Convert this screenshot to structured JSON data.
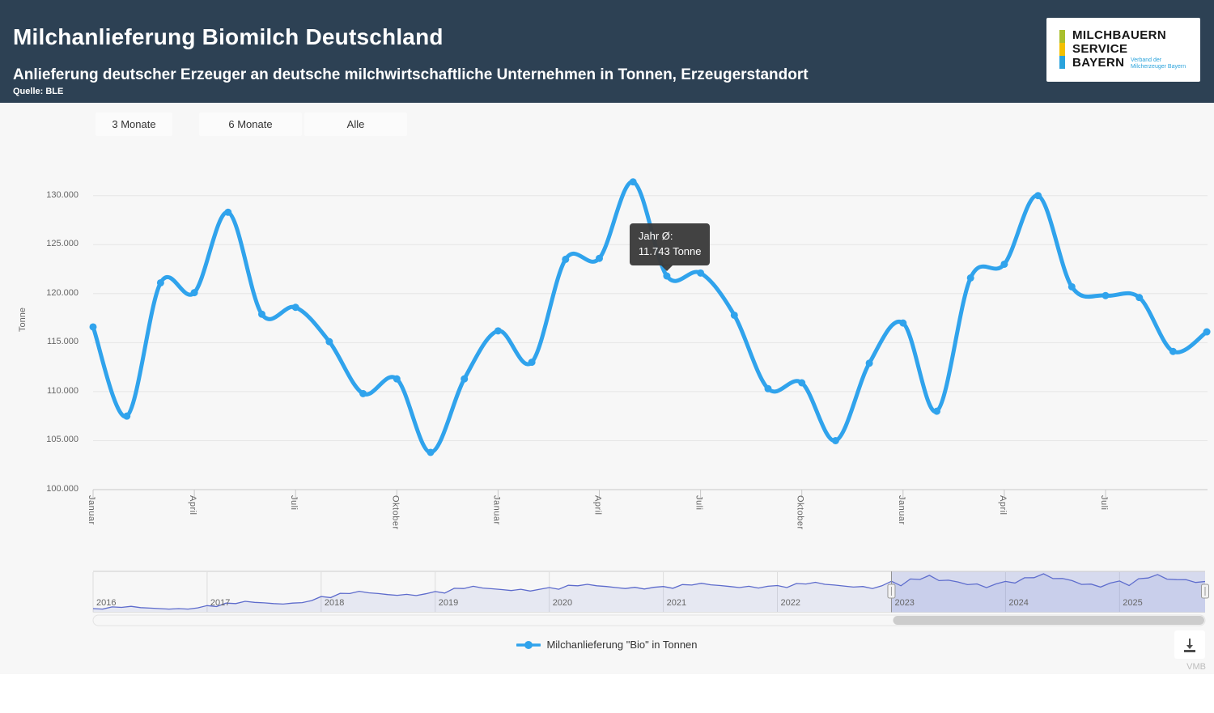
{
  "header": {
    "title": "Milchanlieferung Biomilch Deutschland",
    "subtitle": "Anlieferung deutscher Erzeuger an deutsche milchwirtschaftliche Unternehmen in Tonnen, Erzeugerstandort",
    "source": "Quelle: BLE",
    "logo": {
      "line1": "MILCHBAUERN",
      "line2": "SERVICE",
      "line3": "BAYERN",
      "tagline_line1": "Verband der",
      "tagline_line2": "Milcherzeuger Bayern"
    }
  },
  "range_selector": {
    "buttons": [
      "3 Monate",
      "6 Monate",
      "Alle"
    ]
  },
  "legend": {
    "label": "Milchanlieferung \"Bio\" in Tonnen"
  },
  "tooltip": {
    "line1": "Jahr Ø:",
    "line2": "11.743 Tonne"
  },
  "watermark": "VMB",
  "colors": {
    "header_bg": "#2d4154",
    "chart_bg": "#f7f7f7",
    "series": "#30a3ec",
    "grid": "#e6e6e6",
    "axis_line": "#c8c8c8",
    "axis_text": "#666666",
    "tooltip_bg": "#3c3c3c",
    "navigator_line": "#5d6bcc",
    "navigator_mask": "rgba(102,120,209,0.22)",
    "scrollbar_thumb": "#cccccc",
    "logo_bar": [
      "#a9bf2c",
      "#f3c000",
      "#2aa3dc"
    ]
  },
  "chart_data": {
    "type": "line",
    "series_name": "Milchanlieferung \"Bio\" in Tonnen",
    "title": "",
    "xlabel": "",
    "ylabel": "Tonne",
    "ylim": [
      100000,
      132500
    ],
    "grid": "horizontal",
    "legend_position": "bottom",
    "ytick_values": [
      130000,
      125000,
      120000,
      115000,
      110000,
      105000,
      100000
    ],
    "ytick_labels": [
      "130.000",
      "125.000",
      "120.000",
      "115.000",
      "110.000",
      "105.000",
      "100.000"
    ],
    "x": [
      "2023-01",
      "2023-02",
      "2023-03",
      "2023-04",
      "2023-05",
      "2023-06",
      "2023-07",
      "2023-08",
      "2023-09",
      "2023-10",
      "2023-11",
      "2023-12",
      "2024-01",
      "2024-02",
      "2024-03",
      "2024-04",
      "2024-05",
      "2024-06",
      "2024-07",
      "2024-08",
      "2024-09",
      "2024-10",
      "2024-11",
      "2024-12",
      "2025-01",
      "2025-02",
      "2025-03",
      "2025-04",
      "2025-05",
      "2025-06",
      "2025-07",
      "2025-08",
      "2025-09",
      "2025-10"
    ],
    "values": [
      116600,
      107500,
      121100,
      120100,
      128300,
      117900,
      118600,
      115100,
      109800,
      111300,
      103800,
      111300,
      116200,
      113000,
      123500,
      123600,
      131400,
      121800,
      122100,
      117800,
      110300,
      110900,
      105000,
      112900,
      117000,
      108000,
      121600,
      123000,
      130000,
      120700,
      119800,
      119600,
      114100,
      116100
    ],
    "xtick_every_months": 3,
    "xtick_labels": [
      "Januar",
      "April",
      "Juli",
      "Oktober",
      "Januar",
      "April",
      "Juli",
      "Oktober",
      "Januar",
      "April",
      "Juli"
    ],
    "tooltip_point_x": "2024-06",
    "navigator": {
      "start": "2016-01",
      "years": [
        "2016",
        "2017",
        "2018",
        "2019",
        "2020",
        "2021",
        "2022",
        "2023",
        "2024",
        "2025"
      ],
      "selected_start": "2023-01",
      "values": [
        62000,
        61000,
        65500,
        64500,
        66500,
        64000,
        63000,
        62000,
        61000,
        62000,
        61000,
        63500,
        68000,
        66000,
        73000,
        72000,
        76500,
        74500,
        73500,
        72000,
        71000,
        73000,
        74000,
        78000,
        86000,
        84000,
        92500,
        92000,
        96500,
        93500,
        92000,
        90000,
        88500,
        90500,
        88000,
        91500,
        96000,
        93000,
        102500,
        102000,
        106500,
        103000,
        101500,
        100000,
        98000,
        100500,
        97000,
        100500,
        104000,
        100500,
        108500,
        107500,
        110500,
        107500,
        106000,
        104000,
        102000,
        104500,
        101000,
        104500,
        106000,
        102500,
        110000,
        109000,
        112500,
        109500,
        108000,
        106000,
        104000,
        106500,
        103000,
        106500,
        108000,
        104000,
        112000,
        111000,
        114500,
        110500,
        109000,
        107000,
        105000,
        106000,
        102000,
        107500,
        116600,
        107500,
        121100,
        120100,
        128300,
        117900,
        118600,
        115100,
        109800,
        111300,
        103800,
        111300,
        116200,
        113000,
        123500,
        123600,
        131400,
        121800,
        122100,
        117800,
        110300,
        110900,
        105000,
        112900,
        117000,
        108000,
        121600,
        123000,
        130000,
        120700,
        119800,
        119600,
        114100,
        116100
      ]
    }
  }
}
